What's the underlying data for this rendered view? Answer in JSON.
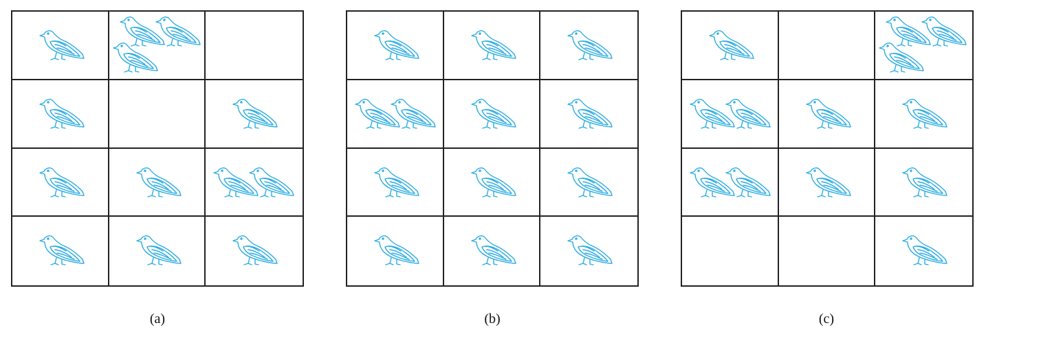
{
  "figures": [
    {
      "id": "a",
      "caption": "(a)",
      "rows": 4,
      "cols": 3,
      "pigeons_per_hole": [
        [
          1,
          3,
          0
        ],
        [
          1,
          0,
          1
        ],
        [
          1,
          1,
          2
        ],
        [
          1,
          1,
          1
        ]
      ]
    },
    {
      "id": "b",
      "caption": "(b)",
      "rows": 4,
      "cols": 3,
      "pigeons_per_hole": [
        [
          1,
          1,
          1
        ],
        [
          2,
          1,
          1
        ],
        [
          1,
          1,
          1
        ],
        [
          1,
          1,
          1
        ]
      ]
    },
    {
      "id": "c",
      "caption": "(c)",
      "rows": 4,
      "cols": 3,
      "pigeons_per_hole": [
        [
          1,
          0,
          3
        ],
        [
          2,
          1,
          1
        ],
        [
          2,
          1,
          1
        ],
        [
          0,
          0,
          1
        ]
      ]
    }
  ],
  "colors": {
    "pigeon": "#29abe2",
    "grid": "#222222",
    "background": "#ffffff"
  },
  "icons": {
    "pigeon": "pigeon-icon"
  }
}
